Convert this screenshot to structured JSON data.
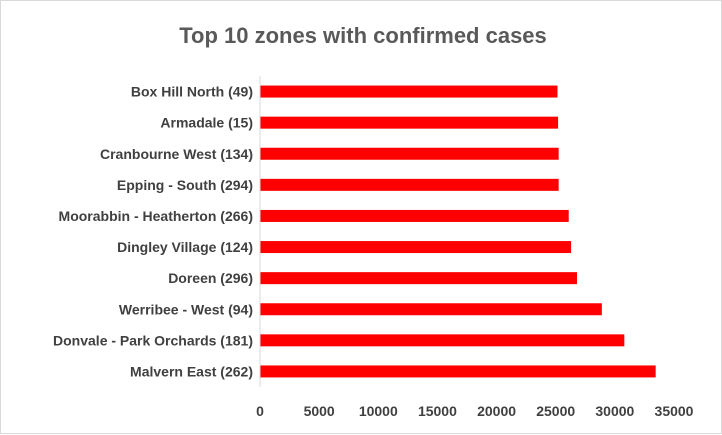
{
  "chart_data": {
    "type": "bar",
    "orientation": "horizontal",
    "title": "Top 10 zones with confirmed cases",
    "categories": [
      "Box Hill North (49)",
      "Armadale (15)",
      "Cranbourne West (134)",
      "Epping - South (294)",
      "Moorabbin - Heatherton (266)",
      "Dingley Village (124)",
      "Doreen (296)",
      "Werribee - West (94)",
      "Donvale - Park Orchards (181)",
      "Malvern East (262)"
    ],
    "values": [
      25150,
      25200,
      25250,
      25250,
      26100,
      26300,
      26800,
      28900,
      30800,
      33450
    ],
    "xlabel": "",
    "ylabel": "",
    "xlim": [
      0,
      35000
    ],
    "xticks": [
      "0",
      "5000",
      "10000",
      "15000",
      "20000",
      "25000",
      "30000",
      "35000"
    ],
    "grid": false,
    "legend": "none",
    "bar_color": "#ff0000"
  }
}
